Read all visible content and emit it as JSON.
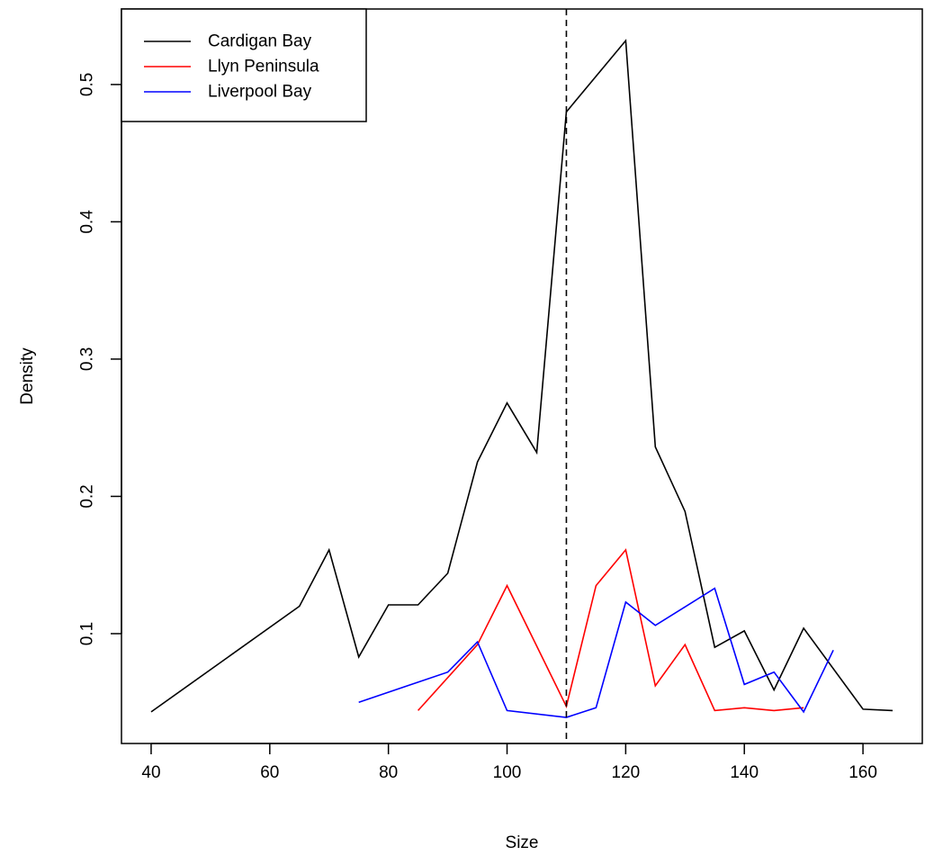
{
  "chart_data": {
    "type": "line",
    "xlabel": "Size",
    "ylabel": "Density",
    "xlim": [
      35,
      170
    ],
    "ylim": [
      0.02,
      0.555
    ],
    "x_ticks": [
      40,
      60,
      80,
      100,
      120,
      140,
      160
    ],
    "y_ticks": [
      0.1,
      0.2,
      0.3,
      0.4,
      0.5
    ],
    "legend_position": "top-left",
    "reference_line": {
      "x": 110,
      "style": "dashed",
      "color": "#000000"
    },
    "series": [
      {
        "name": "Cardigan Bay",
        "color": "#000000",
        "x": [
          40,
          65,
          70,
          75,
          80,
          85,
          90,
          95,
          100,
          105,
          110,
          120,
          125,
          130,
          135,
          140,
          145,
          150,
          160,
          165
        ],
        "y": [
          0.043,
          0.12,
          0.161,
          0.083,
          0.121,
          0.121,
          0.144,
          0.225,
          0.268,
          0.232,
          0.48,
          0.532,
          0.236,
          0.189,
          0.09,
          0.102,
          0.059,
          0.104,
          0.045,
          0.044
        ]
      },
      {
        "name": "Llyn Peninsula",
        "color": "#ff0000",
        "x": [
          85,
          95,
          100,
          110,
          115,
          120,
          125,
          130,
          135,
          140,
          145,
          150
        ],
        "y": [
          0.044,
          0.092,
          0.135,
          0.047,
          0.135,
          0.161,
          0.062,
          0.092,
          0.044,
          0.046,
          0.044,
          0.046
        ]
      },
      {
        "name": "Liverpool Bay",
        "color": "#0000ff",
        "x": [
          75,
          90,
          95,
          100,
          110,
          115,
          120,
          125,
          135,
          140,
          145,
          150,
          155
        ],
        "y": [
          0.05,
          0.072,
          0.094,
          0.044,
          0.039,
          0.046,
          0.123,
          0.106,
          0.133,
          0.063,
          0.072,
          0.043,
          0.088
        ]
      }
    ]
  }
}
